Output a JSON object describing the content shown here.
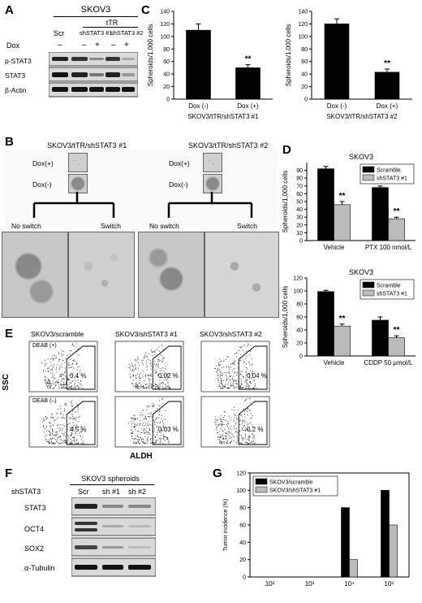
{
  "panels": {
    "A": "A",
    "B": "B",
    "C": "C",
    "D": "D",
    "E": "E",
    "F": "F",
    "G": "G"
  },
  "panel_a": {
    "title": "SKOV3",
    "ttr": "tTR",
    "lanes": [
      "Scr",
      "shSTAT3 #1",
      "shSTAT3 #2"
    ],
    "dox_label": "Dox",
    "dox_values": [
      "–",
      "–",
      "+",
      "–",
      "+"
    ],
    "rows": [
      "p-STAT3",
      "STAT3",
      "β-Actin"
    ]
  },
  "panel_b": {
    "title_left": "SKOV3/tTR/shSTAT3 #1",
    "title_right": "SKOV3/tTR/shSTAT3 #2",
    "dox_plus": "Dox(+)",
    "dox_minus": "Dox(-)",
    "no_switch": "No switch",
    "switch": "Switch"
  },
  "panel_e": {
    "titles": [
      "SKOV3/scramble",
      "SKOV3/shSTAT3 #1",
      "SKOV3/shSTAT3 #2"
    ],
    "deab_plus": "DEAB (+)",
    "deab_minus": "DEAB (–)",
    "top_pcts": [
      "0.4 %",
      "0.02 %",
      "0.04 %"
    ],
    "bottom_pcts": [
      "4.5 %",
      "0.03 %",
      "0.2 %"
    ],
    "ylabel": "SSC",
    "xlabel": "ALDH"
  },
  "panel_f": {
    "title": "SKOV3 spheroids",
    "row_label": "shSTAT3",
    "lanes": [
      "Scr",
      "sh #1",
      "sh #2"
    ],
    "rows": [
      "STAT3",
      "OCT4",
      "SOX2",
      "α-Tubulin"
    ]
  },
  "colors": {
    "black_bar": "#000000",
    "gray_bar": "#bbbbbb"
  },
  "chart_data": [
    {
      "id": "C1",
      "type": "bar",
      "categories": [
        "Dox (-)",
        "Dox (+)"
      ],
      "values": [
        110,
        50
      ],
      "errors": [
        10,
        5
      ],
      "significance": [
        "",
        "**"
      ],
      "ylabel": "Spheroids/1,000 cells",
      "xlabel": "SKOV3/tTR/shSTAT3 #1",
      "ylim": [
        0,
        140
      ],
      "yticks": [
        0,
        20,
        40,
        60,
        80,
        100,
        120,
        140
      ]
    },
    {
      "id": "C2",
      "type": "bar",
      "categories": [
        "Dox (-)",
        "Dox (+)"
      ],
      "values": [
        120,
        43
      ],
      "errors": [
        8,
        5
      ],
      "significance": [
        "",
        "**"
      ],
      "ylabel": "Spheroids/1,000 cells",
      "xlabel": "SKOV3/tTR/shSTAT3 #2",
      "ylim": [
        0,
        140
      ],
      "yticks": [
        0,
        20,
        40,
        60,
        80,
        100,
        120,
        140
      ]
    },
    {
      "id": "D1",
      "type": "bar",
      "title": "SKOV3",
      "categories": [
        "Vehicle",
        "PTX 100 nmol/L"
      ],
      "series": [
        {
          "name": "Scramble",
          "values": [
            92,
            68
          ],
          "errors": [
            3,
            2
          ]
        },
        {
          "name": "shSTAT3 #1",
          "values": [
            46,
            28
          ],
          "errors": [
            4,
            2
          ]
        }
      ],
      "significance": [
        "**",
        "**"
      ],
      "ylabel": "Spheroids/1,000 cells",
      "ylim": [
        0,
        100
      ],
      "yticks": [
        0,
        10,
        20,
        30,
        40,
        50,
        60,
        70,
        80,
        90
      ],
      "legend": "top-right"
    },
    {
      "id": "D2",
      "type": "bar",
      "title": "SKOV3",
      "categories": [
        "Vehicle",
        "CDDP 50 μmol/L"
      ],
      "series": [
        {
          "name": "Scramble",
          "values": [
            99,
            55
          ],
          "errors": [
            2,
            5
          ]
        },
        {
          "name": "shSTAT3 #1",
          "values": [
            46,
            28
          ],
          "errors": [
            3,
            3
          ]
        }
      ],
      "significance": [
        "**",
        "**"
      ],
      "ylabel": "Spheroids/1,000 cells",
      "ylim": [
        0,
        120
      ],
      "yticks": [
        0,
        20,
        40,
        60,
        80,
        100,
        120
      ],
      "legend": "top-right"
    },
    {
      "id": "G",
      "type": "bar",
      "categories": [
        "10²",
        "10³",
        "10⁴",
        "10⁵"
      ],
      "series": [
        {
          "name": "SKOV3/scramble",
          "values": [
            0,
            0,
            80,
            100
          ]
        },
        {
          "name": "SKOV3/shSTAT3 #1",
          "values": [
            0,
            0,
            20,
            60
          ]
        }
      ],
      "ylabel": "Tumor incidence (%)",
      "ylim": [
        0,
        120
      ],
      "yticks": [
        0,
        20,
        40,
        60,
        80,
        100,
        120
      ],
      "legend": "top-left"
    }
  ]
}
